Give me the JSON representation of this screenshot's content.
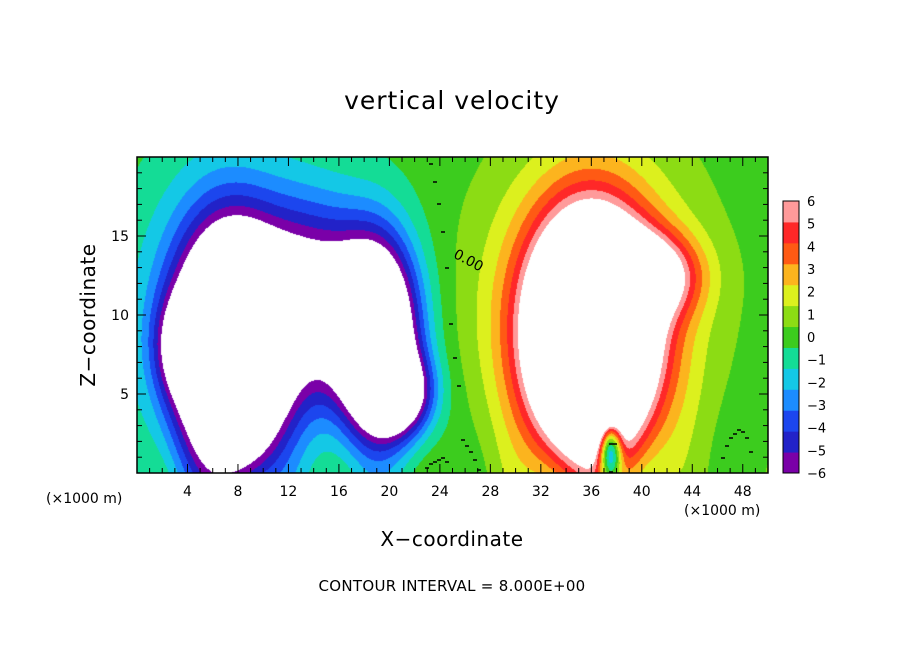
{
  "chart_data": {
    "type": "heatmap",
    "title": "vertical velocity",
    "xlabel": "X−coordinate",
    "ylabel": "Z−coordinate",
    "x_unit_label": "(×1000 m)",
    "x_unit_label_right": "(×1000 m)",
    "footer": "CONTOUR INTERVAL = 8.000E+00",
    "contour_label": "0.00",
    "xlim": [
      0,
      50
    ],
    "ylim": [
      0,
      20
    ],
    "x_ticks": [
      4,
      8,
      12,
      16,
      20,
      24,
      28,
      32,
      36,
      40,
      44,
      48
    ],
    "y_ticks": [
      5,
      10,
      15
    ],
    "colorbar": {
      "range": [
        -6,
        6
      ],
      "labels": [
        "6",
        "5",
        "4",
        "3",
        "2",
        "1",
        "0",
        "−1",
        "−2",
        "−3",
        "−4",
        "−5",
        "−6"
      ],
      "saturated_above_color": "#ffffff"
    },
    "features": [
      {
        "kind": "downdraft",
        "x": 7.5,
        "z": 7.5,
        "sx": 3.8,
        "sz": 7.0,
        "amp": -16
      },
      {
        "kind": "downdraft",
        "x": 7.0,
        "z": 9.5,
        "sx": 6.5,
        "sz": 9.0,
        "amp": -5
      },
      {
        "kind": "downdraft",
        "x": 19.0,
        "z": 8.5,
        "sx": 3.2,
        "sz": 6.0,
        "amp": -14
      },
      {
        "kind": "downdraft",
        "x": 21.0,
        "z": 5.0,
        "sx": 2.5,
        "sz": 2.5,
        "amp": -7
      },
      {
        "kind": "downdraft",
        "x": 14.0,
        "z": 11.0,
        "sx": 4.5,
        "sz": 6.0,
        "amp": -7
      },
      {
        "kind": "downdraft",
        "x": 3.5,
        "z": 8.0,
        "sx": 2.0,
        "sz": 3.0,
        "amp": -4
      },
      {
        "kind": "updraft",
        "x": 36.0,
        "z": 8.5,
        "sx": 4.2,
        "sz": 6.5,
        "amp": 22
      },
      {
        "kind": "updraft",
        "x": 36.0,
        "z": 10.0,
        "sx": 7.5,
        "sz": 9.0,
        "amp": 6
      },
      {
        "kind": "updraft",
        "x": 41.0,
        "z": 12.5,
        "sx": 3.5,
        "sz": 2.5,
        "amp": 6
      },
      {
        "kind": "downdraft",
        "x": 37.5,
        "z": 1.5,
        "sx": 0.9,
        "sz": 2.0,
        "amp": -10
      }
    ]
  }
}
